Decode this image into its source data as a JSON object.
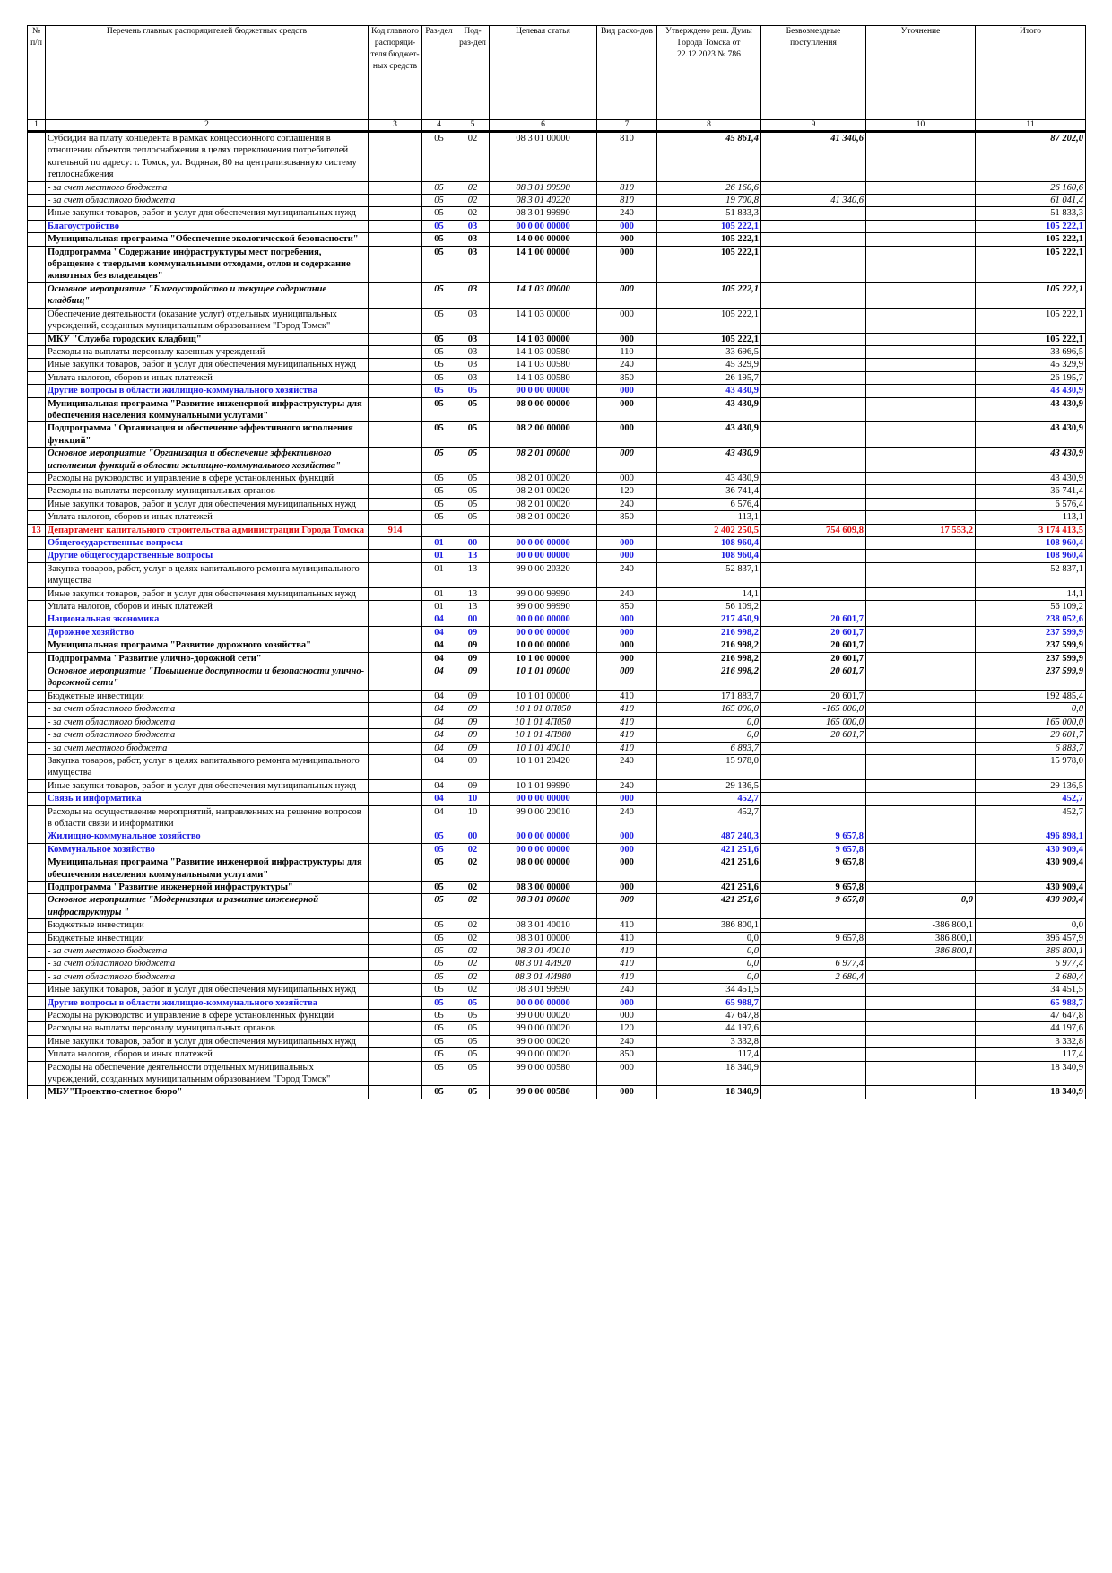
{
  "header": {
    "columns": [
      "№ п/п",
      "Перечень главных распорядителей бюджетных средств",
      "Код главного распоряди-теля бюджет-ных средств",
      "Раз-дел",
      "Под-раз-дел",
      "Целевая статья",
      "Вид расхо-дов",
      "Утверждено реш. Думы Города Томска от 22.12.2023 № 786",
      "Безвозмездные поступления",
      "Уточнение",
      "Итого"
    ],
    "numbers": [
      "1",
      "2",
      "3",
      "4",
      "5",
      "6",
      "7",
      "8",
      "9",
      "10",
      "11"
    ]
  },
  "rows": [
    {
      "style": "subsidy",
      "name": "Субсидия на плату концедента в рамках концессионного соглашения в отношении объектов теплоснабжения в целях переключения потребителей котельной по адресу: г. Томск, ул. Водяная, 80 на централизованную систему теплоснабжения",
      "razdel": "05",
      "podrazdel": "02",
      "statya": "08 3 01 00000",
      "vid": "810",
      "approved": "45 861,4",
      "gratuitous": "41 340,6",
      "total": "87 202,0"
    },
    {
      "style": "italic",
      "name": "- за счет местного бюджета",
      "razdel": "05",
      "podrazdel": "02",
      "statya": "08 3 01 99990",
      "vid": "810",
      "approved": "26 160,6",
      "total": "26 160,6"
    },
    {
      "style": "italic",
      "name": "- за счет областного бюджета",
      "razdel": "05",
      "podrazdel": "02",
      "statya": "08 3 01 40220",
      "vid": "810",
      "approved": "19 700,8",
      "gratuitous": "41 340,6",
      "total": "61 041,4"
    },
    {
      "style": "normal",
      "name": "Иные закупки товаров, работ и услуг для обеспечения муниципальных нужд",
      "razdel": "05",
      "podrazdel": "02",
      "statya": "08 3 01 99990",
      "vid": "240",
      "approved": "51 833,3",
      "total": "51 833,3"
    },
    {
      "style": "heading",
      "name": "Благоустройство",
      "razdel": "05",
      "podrazdel": "03",
      "statya": "00 0 00 00000",
      "vid": "000",
      "approved": "105 222,1",
      "total": "105 222,1"
    },
    {
      "style": "bold",
      "name": "Муниципальная программа \"Обеспечение экологической безопасности\"",
      "razdel": "05",
      "podrazdel": "03",
      "statya": "14 0 00 00000",
      "vid": "000",
      "approved": "105 222,1",
      "total": "105 222,1"
    },
    {
      "style": "bold",
      "name": "Подпрограмма \"Содержание инфраструктуры мест погребения, обращение с твердыми коммунальными отходами, отлов и содержание животных без владельцев\"",
      "razdel": "05",
      "podrazdel": "03",
      "statya": "14 1 00 00000",
      "vid": "000",
      "approved": "105 222,1",
      "total": "105 222,1"
    },
    {
      "style": "bold-italic",
      "name": "Основное мероприятие \"Благоустройство и текущее содержание кладбищ\"",
      "razdel": "05",
      "podrazdel": "03",
      "statya": "14 1 03 00000",
      "vid": "000",
      "approved": "105 222,1",
      "total": "105 222,1"
    },
    {
      "style": "normal",
      "name": "Обеспечение деятельности (оказание услуг) отдельных муниципальных учреждений, созданных муниципальным образованием \"Город Томск\"",
      "razdel": "05",
      "podrazdel": "03",
      "statya": "14 1 03 00000",
      "vid": "000",
      "approved": "105 222,1",
      "total": "105 222,1"
    },
    {
      "style": "bold",
      "name": "МКУ \"Служба городских кладбищ\"",
      "razdel": "05",
      "podrazdel": "03",
      "statya": "14 1 03 00000",
      "vid": "000",
      "approved": "105 222,1",
      "total": "105 222,1"
    },
    {
      "style": "normal",
      "name": "Расходы на выплаты персоналу казенных учреждений",
      "razdel": "05",
      "podrazdel": "03",
      "statya": "14 1 03 00580",
      "vid": "110",
      "approved": "33 696,5",
      "total": "33 696,5"
    },
    {
      "style": "normal",
      "name": "Иные закупки товаров, работ и услуг для обеспечения муниципальных нужд",
      "razdel": "05",
      "podrazdel": "03",
      "statya": "14 1 03 00580",
      "vid": "240",
      "approved": "45 329,9",
      "total": "45 329,9"
    },
    {
      "style": "normal",
      "name": "Уплата налогов, сборов и иных платежей",
      "razdel": "05",
      "podrazdel": "03",
      "statya": "14 1 03 00580",
      "vid": "850",
      "approved": "26 195,7",
      "total": "26 195,7"
    },
    {
      "style": "heading",
      "name": "Другие вопросы в области жилищно-коммунального хозяйства",
      "razdel": "05",
      "podrazdel": "05",
      "statya": "00 0 00 00000",
      "vid": "000",
      "approved": "43 430,9",
      "total": "43 430,9"
    },
    {
      "style": "bold",
      "name": "Муниципальная программа \"Развитие инженерной инфраструктуры для обеспечения населения коммунальными услугами\"",
      "razdel": "05",
      "podrazdel": "05",
      "statya": "08 0 00 00000",
      "vid": "000",
      "approved": "43 430,9",
      "total": "43 430,9"
    },
    {
      "style": "bold",
      "name": "Подпрограмма \"Организация и обеспечение эффективного исполнения функций\"",
      "razdel": "05",
      "podrazdel": "05",
      "statya": "08 2 00 00000",
      "vid": "000",
      "approved": "43 430,9",
      "total": "43 430,9"
    },
    {
      "style": "bold-italic",
      "name": "Основное мероприятие \"Организация и обеспечение эффективного исполнения функций в области жилищно-коммунального хозяйства\"",
      "razdel": "05",
      "podrazdel": "05",
      "statya": "08 2 01 00000",
      "vid": "000",
      "approved": "43 430,9",
      "total": "43 430,9"
    },
    {
      "style": "normal",
      "name": "Расходы на руководство и управление в сфере установленных функций",
      "razdel": "05",
      "podrazdel": "05",
      "statya": "08 2 01 00020",
      "vid": "000",
      "approved": "43 430,9",
      "total": "43 430,9"
    },
    {
      "style": "normal",
      "name": "Расходы на выплаты персоналу муниципальных органов",
      "razdel": "05",
      "podrazdel": "05",
      "statya": "08 2 01 00020",
      "vid": "120",
      "approved": "36 741,4",
      "total": "36 741,4"
    },
    {
      "style": "normal",
      "name": "Иные закупки товаров, работ и услуг для обеспечения муниципальных нужд",
      "razdel": "05",
      "podrazdel": "05",
      "statya": "08 2 01 00020",
      "vid": "240",
      "approved": "6 576,4",
      "total": "6 576,4"
    },
    {
      "style": "normal",
      "name": "Уплата налогов, сборов и иных платежей",
      "razdel": "05",
      "podrazdel": "05",
      "statya": "08 2 01 00020",
      "vid": "850",
      "approved": "113,1",
      "total": "113,1"
    },
    {
      "style": "department",
      "num": "13",
      "name": "Департамент капитального строительства администрации Города Томска",
      "code": "914",
      "approved": "2 402 250,5",
      "gratuitous": "754 609,8",
      "refinement": "17 553,2",
      "total": "3 174 413,5"
    },
    {
      "style": "heading-large",
      "name": "Общегосударственные вопросы",
      "razdel": "01",
      "podrazdel": "00",
      "statya": "00 0 00 00000",
      "vid": "000",
      "approved": "108 960,4",
      "total": "108 960,4"
    },
    {
      "style": "heading",
      "name": "Другие общегосударственные вопросы",
      "razdel": "01",
      "podrazdel": "13",
      "statya": "00 0 00 00000",
      "vid": "000",
      "approved": "108 960,4",
      "total": "108 960,4"
    },
    {
      "style": "normal",
      "name": "Закупка товаров, работ, услуг в целях капитального ремонта муниципального имущества",
      "razdel": "01",
      "podrazdel": "13",
      "statya": "99 0 00 20320",
      "vid": "240",
      "approved": "52 837,1",
      "total": "52 837,1"
    },
    {
      "style": "normal",
      "name": "Иные закупки товаров, работ и услуг для обеспечения муниципальных нужд",
      "razdel": "01",
      "podrazdel": "13",
      "statya": "99 0 00 99990",
      "vid": "240",
      "approved": "14,1",
      "total": "14,1"
    },
    {
      "style": "normal",
      "name": "Уплата налогов, сборов и иных платежей",
      "razdel": "01",
      "podrazdel": "13",
      "statya": "99 0 00 99990",
      "vid": "850",
      "approved": "56 109,2",
      "total": "56 109,2"
    },
    {
      "style": "heading-large",
      "name": "Национальная экономика",
      "razdel": "04",
      "podrazdel": "00",
      "statya": "00 0 00 00000",
      "vid": "000",
      "approved": "217 450,9",
      "gratuitous": "20 601,7",
      "total": "238 052,6"
    },
    {
      "style": "heading",
      "name": "Дорожное хозяйство",
      "razdel": "04",
      "podrazdel": "09",
      "statya": "00 0 00 00000",
      "vid": "000",
      "approved": "216 998,2",
      "gratuitous": "20 601,7",
      "total": "237 599,9"
    },
    {
      "style": "bold",
      "name": "Муниципальная программа \"Развитие дорожного хозяйства\"",
      "razdel": "04",
      "podrazdel": "09",
      "statya": "10 0 00 00000",
      "vid": "000",
      "approved": "216 998,2",
      "gratuitous": "20 601,7",
      "total": "237 599,9"
    },
    {
      "style": "bold",
      "name": "Подпрограмма \"Развитие улично-дорожной сети\"",
      "razdel": "04",
      "podrazdel": "09",
      "statya": "10 1 00 00000",
      "vid": "000",
      "approved": "216 998,2",
      "gratuitous": "20 601,7",
      "total": "237 599,9"
    },
    {
      "style": "bold-italic",
      "name": "Основное мероприятие \"Повышение доступности и безопасности улично-дорожной сети\"",
      "razdel": "04",
      "podrazdel": "09",
      "statya": "10 1 01 00000",
      "vid": "000",
      "approved": "216 998,2",
      "gratuitous": "20 601,7",
      "total": "237 599,9"
    },
    {
      "style": "normal",
      "name": "Бюджетные инвестиции",
      "razdel": "04",
      "podrazdel": "09",
      "statya": "10 1 01 00000",
      "vid": "410",
      "approved": "171 883,7",
      "gratuitous": "20 601,7",
      "total": "192 485,4"
    },
    {
      "style": "italic",
      "name": "- за счет областного бюджета",
      "razdel": "04",
      "podrazdel": "09",
      "statya": "10 1 01 0П050",
      "vid": "410",
      "approved": "165 000,0",
      "gratuitous": "-165 000,0",
      "total": "0,0"
    },
    {
      "style": "italic",
      "name": "- за счет областного бюджета",
      "razdel": "04",
      "podrazdel": "09",
      "statya": "10 1 01 4П050",
      "vid": "410",
      "approved": "0,0",
      "gratuitous": "165 000,0",
      "total": "165 000,0"
    },
    {
      "style": "italic",
      "name": "- за счет областного бюджета",
      "razdel": "04",
      "podrazdel": "09",
      "statya": "10 1 01 4П980",
      "vid": "410",
      "approved": "0,0",
      "gratuitous": "20 601,7",
      "total": "20 601,7"
    },
    {
      "style": "italic",
      "name": "- за счет местного бюджета",
      "razdel": "04",
      "podrazdel": "09",
      "statya": "10 1 01 40010",
      "vid": "410",
      "approved": "6 883,7",
      "total": "6 883,7"
    },
    {
      "style": "normal",
      "name": "Закупка товаров, работ, услуг в целях капитального ремонта муниципального имущества",
      "razdel": "04",
      "podrazdel": "09",
      "statya": "10 1 01 20420",
      "vid": "240",
      "approved": "15 978,0",
      "total": "15 978,0"
    },
    {
      "style": "normal",
      "name": "Иные закупки товаров, работ и услуг для обеспечения муниципальных нужд",
      "razdel": "04",
      "podrazdel": "09",
      "statya": "10 1 01 99990",
      "vid": "240",
      "approved": "29 136,5",
      "total": "29 136,5"
    },
    {
      "style": "heading",
      "name": "Связь и информатика",
      "razdel": "04",
      "podrazdel": "10",
      "statya": "00 0 00 00000",
      "vid": "000",
      "approved": "452,7",
      "total": "452,7"
    },
    {
      "style": "normal",
      "name": "Расходы на осуществление мероприятий, направленных на решение вопросов в области связи и информатики",
      "razdel": "04",
      "podrazdel": "10",
      "statya": "99 0 00 20010",
      "vid": "240",
      "approved": "452,7",
      "total": "452,7"
    },
    {
      "style": "heading-large",
      "name": "Жилищно-коммунальное хозяйство",
      "razdel": "05",
      "podrazdel": "00",
      "statya": "00 0 00 00000",
      "vid": "000",
      "approved": "487 240,3",
      "gratuitous": "9 657,8",
      "total": "496 898,1"
    },
    {
      "style": "heading",
      "name": "Коммунальное хозяйство",
      "razdel": "05",
      "podrazdel": "02",
      "statya": "00 0 00 00000",
      "vid": "000",
      "approved": "421 251,6",
      "gratuitous": "9 657,8",
      "total": "430 909,4"
    },
    {
      "style": "bold",
      "name": "Муниципальная программа \"Развитие инженерной инфраструктуры для обеспечения населения коммунальными услугами\"",
      "razdel": "05",
      "podrazdel": "02",
      "statya": "08 0 00 00000",
      "vid": "000",
      "approved": "421 251,6",
      "gratuitous": "9 657,8",
      "total": "430 909,4"
    },
    {
      "style": "bold",
      "name": "Подпрограмма \"Развитие инженерной инфраструктуры\"",
      "razdel": "05",
      "podrazdel": "02",
      "statya": "08 3 00 00000",
      "vid": "000",
      "approved": "421 251,6",
      "gratuitous": "9 657,8",
      "total": "430 909,4"
    },
    {
      "style": "bold-italic",
      "name": "Основное мероприятие \"Модернизация и развитие инженерной инфраструктуры \"",
      "razdel": "05",
      "podrazdel": "02",
      "statya": "08 3 01 00000",
      "vid": "000",
      "approved": "421 251,6",
      "gratuitous": "9 657,8",
      "refinement": "0,0",
      "total": "430 909,4"
    },
    {
      "style": "normal",
      "name": "Бюджетные инвестиции",
      "razdel": "05",
      "podrazdel": "02",
      "statya": "08 3 01 40010",
      "vid": "410",
      "approved": "386 800,1",
      "refinement": "-386 800,1",
      "total": "0,0"
    },
    {
      "style": "normal",
      "name": "Бюджетные инвестиции",
      "razdel": "05",
      "podrazdel": "02",
      "statya": "08 3 01 00000",
      "vid": "410",
      "approved": "0,0",
      "gratuitous": "9 657,8",
      "refinement": "386 800,1",
      "total": "396 457,9"
    },
    {
      "style": "italic",
      "name": "- за счет местного бюджета",
      "razdel": "05",
      "podrazdel": "02",
      "statya": "08 3 01 40010",
      "vid": "410",
      "approved": "0,0",
      "refinement": "386 800,1",
      "total": "386 800,1"
    },
    {
      "style": "italic",
      "name": "- за счет областного бюджета",
      "razdel": "05",
      "podrazdel": "02",
      "statya": "08 3 01 4И920",
      "vid": "410",
      "approved": "0,0",
      "gratuitous": "6 977,4",
      "total": "6 977,4"
    },
    {
      "style": "italic",
      "name": "- за счет областного бюджета",
      "razdel": "05",
      "podrazdel": "02",
      "statya": "08 3 01 4И980",
      "vid": "410",
      "approved": "0,0",
      "gratuitous": "2 680,4",
      "total": "2 680,4"
    },
    {
      "style": "normal",
      "name": "Иные закупки товаров, работ и услуг для обеспечения муниципальных нужд",
      "razdel": "05",
      "podrazdel": "02",
      "statya": "08 3 01 99990",
      "vid": "240",
      "approved": "34 451,5",
      "total": "34 451,5"
    },
    {
      "style": "heading",
      "name": "Другие вопросы в области жилищно-коммунального хозяйства",
      "razdel": "05",
      "podrazdel": "05",
      "statya": "00 0 00 00000",
      "vid": "000",
      "approved": "65 988,7",
      "total": "65 988,7"
    },
    {
      "style": "normal",
      "name": "Расходы на руководство и управление в сфере установленных функций",
      "razdel": "05",
      "podrazdel": "05",
      "statya": "99 0 00 00020",
      "vid": "000",
      "approved": "47 647,8",
      "total": "47 647,8"
    },
    {
      "style": "normal",
      "name": "Расходы на выплаты персоналу муниципальных органов",
      "razdel": "05",
      "podrazdel": "05",
      "statya": "99 0 00 00020",
      "vid": "120",
      "approved": "44 197,6",
      "total": "44 197,6"
    },
    {
      "style": "normal",
      "name": "Иные закупки товаров, работ и услуг для обеспечения муниципальных нужд",
      "razdel": "05",
      "podrazdel": "05",
      "statya": "99 0 00 00020",
      "vid": "240",
      "approved": "3 332,8",
      "total": "3 332,8"
    },
    {
      "style": "normal",
      "name": "Уплата налогов, сборов и иных платежей",
      "razdel": "05",
      "podrazdel": "05",
      "statya": "99 0 00 00020",
      "vid": "850",
      "approved": "117,4",
      "total": "117,4"
    },
    {
      "style": "normal",
      "name": "Расходы на обеспечение деятельности отдельных муниципальных учреждений, созданных муниципальным образованием \"Город Томск\"",
      "razdel": "05",
      "podrazdel": "05",
      "statya": "99 0 00 00580",
      "vid": "000",
      "approved": "18 340,9",
      "total": "18 340,9"
    },
    {
      "style": "bold",
      "name": "МБУ\"Проектно-сметное бюро\"",
      "razdel": "05",
      "podrazdel": "05",
      "statya": "99 0 00 00580",
      "vid": "000",
      "approved": "18 340,9",
      "total": "18 340,9"
    }
  ]
}
